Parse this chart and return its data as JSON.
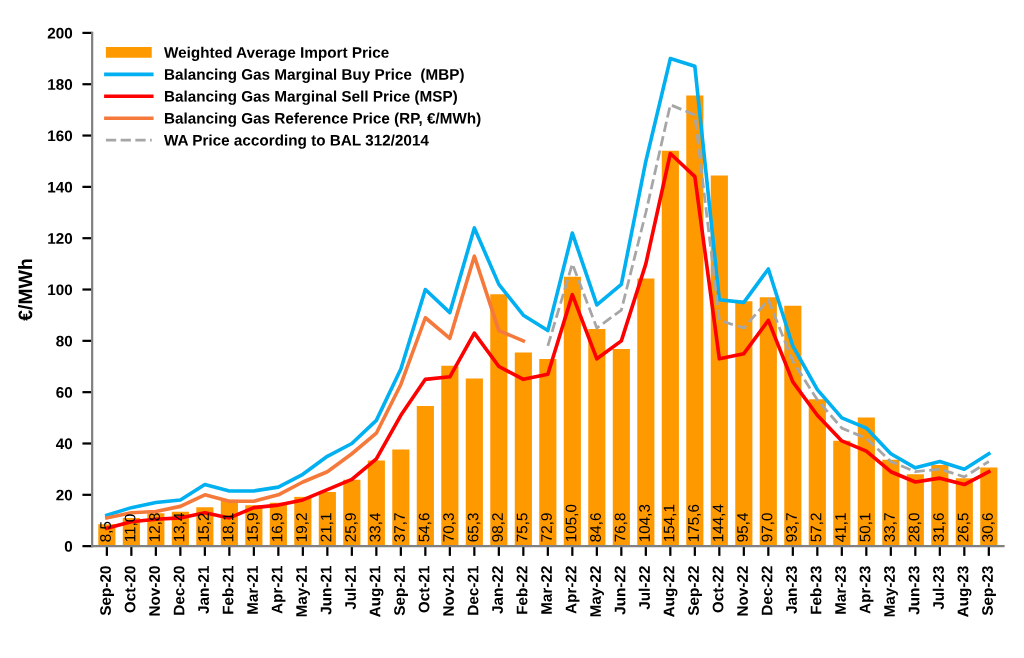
{
  "chart_data": {
    "type": "bar",
    "ylabel": "€/MWh",
    "categories": [
      "Sep-20",
      "Oct-20",
      "Nov-20",
      "Dec-20",
      "Jan-21",
      "Feb-21",
      "Mar-21",
      "Apr-21",
      "May-21",
      "Jun-21",
      "Jul-21",
      "Aug-21",
      "Sep-21",
      "Oct-21",
      "Nov-21",
      "Dec-21",
      "Jan-22",
      "Feb-22",
      "Mar-22",
      "Apr-22",
      "May-22",
      "Jun-22",
      "Jul-22",
      "Aug-22",
      "Sep-22",
      "Oct-22",
      "Nov-22",
      "Dec-22",
      "Jan-23",
      "Feb-23",
      "Mar-23",
      "Apr-23",
      "May-23",
      "Jun-23",
      "Jul-23",
      "Aug-23",
      "Sep-23"
    ],
    "ylim": [
      0,
      200
    ],
    "yticks": [
      0,
      20,
      40,
      60,
      80,
      100,
      120,
      140,
      160,
      180,
      200
    ],
    "grid": false,
    "legend": "top left",
    "series": [
      {
        "name": "Weighted Average Import Price",
        "color": "#ff9900",
        "values": [
          8.5,
          11.0,
          12.8,
          13.4,
          15.2,
          18.1,
          15.9,
          16.9,
          19.2,
          21.1,
          25.9,
          33.4,
          37.7,
          54.6,
          70.3,
          65.3,
          98.2,
          75.5,
          72.9,
          105.0,
          84.6,
          76.8,
          104.3,
          154.1,
          175.6,
          144.4,
          95.4,
          97.0,
          93.7,
          57.2,
          41.1,
          50.1,
          33.7,
          28.0,
          31.6,
          26.5,
          30.6
        ],
        "value_labels": [
          "8,5",
          "11,0",
          "12,8",
          "13,4",
          "15,2",
          "18,1",
          "15,9",
          "16,9",
          "19,2",
          "21,1",
          "25,9",
          "33,4",
          "37,7",
          "54,6",
          "70,3",
          "65,3",
          "98,2",
          "75,5",
          "72,9",
          "105,0",
          "84,6",
          "76,8",
          "104,3",
          "154,1",
          "175,6",
          "144,4",
          "95,4",
          "97,0",
          "93,7",
          "57,2",
          "41,1",
          "50,1",
          "33,7",
          "28,0",
          "31,6",
          "26,5",
          "30,6"
        ]
      },
      {
        "name": "Balancing Gas Marginal Buy Price  (MBP)",
        "type": "line",
        "color": "#00b0f0",
        "line_style": "solid",
        "values": [
          12,
          15,
          17,
          18,
          24,
          21.5,
          21.5,
          23,
          28,
          35,
          40,
          49,
          69,
          100,
          91,
          124,
          102,
          90,
          84,
          122,
          94,
          102,
          150,
          190,
          187,
          96,
          95,
          108,
          78,
          61,
          50,
          46,
          36,
          30.5,
          33,
          30,
          36
        ]
      },
      {
        "name": "Balancing Gas Marginal Sell Price (MSP)",
        "type": "line",
        "color": "#ff0000",
        "line_style": "solid",
        "values": [
          7,
          9.5,
          10.5,
          11,
          13,
          11,
          15,
          16,
          18,
          22,
          26,
          34,
          51,
          65,
          66,
          83,
          70,
          65,
          67,
          98,
          73,
          80,
          110,
          153,
          144,
          73,
          75,
          88,
          64,
          51,
          41,
          37,
          29,
          25,
          26.5,
          24,
          29
        ]
      },
      {
        "name": "Balancing Gas Reference Price (RP, €/MWh)",
        "type": "line",
        "color": "#f4793b",
        "line_style": "solid",
        "values": [
          11,
          13,
          13.5,
          15.5,
          20,
          17.5,
          17.5,
          20,
          25,
          29,
          36,
          44,
          63,
          89,
          81,
          113,
          84,
          80,
          null,
          null,
          null,
          null,
          null,
          null,
          null,
          null,
          null,
          null,
          null,
          null,
          null,
          null,
          null,
          null,
          null,
          null,
          null
        ]
      },
      {
        "name": "WA Price according to BAL 312/2014",
        "type": "line",
        "color": "#a6a6a6",
        "line_style": "dashed",
        "values": [
          null,
          null,
          null,
          null,
          null,
          null,
          null,
          null,
          null,
          null,
          null,
          null,
          null,
          null,
          null,
          null,
          null,
          null,
          78,
          110,
          85,
          92,
          130,
          172,
          168,
          88,
          85,
          96,
          72,
          57,
          46,
          42,
          33,
          29,
          30,
          27,
          33
        ]
      }
    ]
  }
}
